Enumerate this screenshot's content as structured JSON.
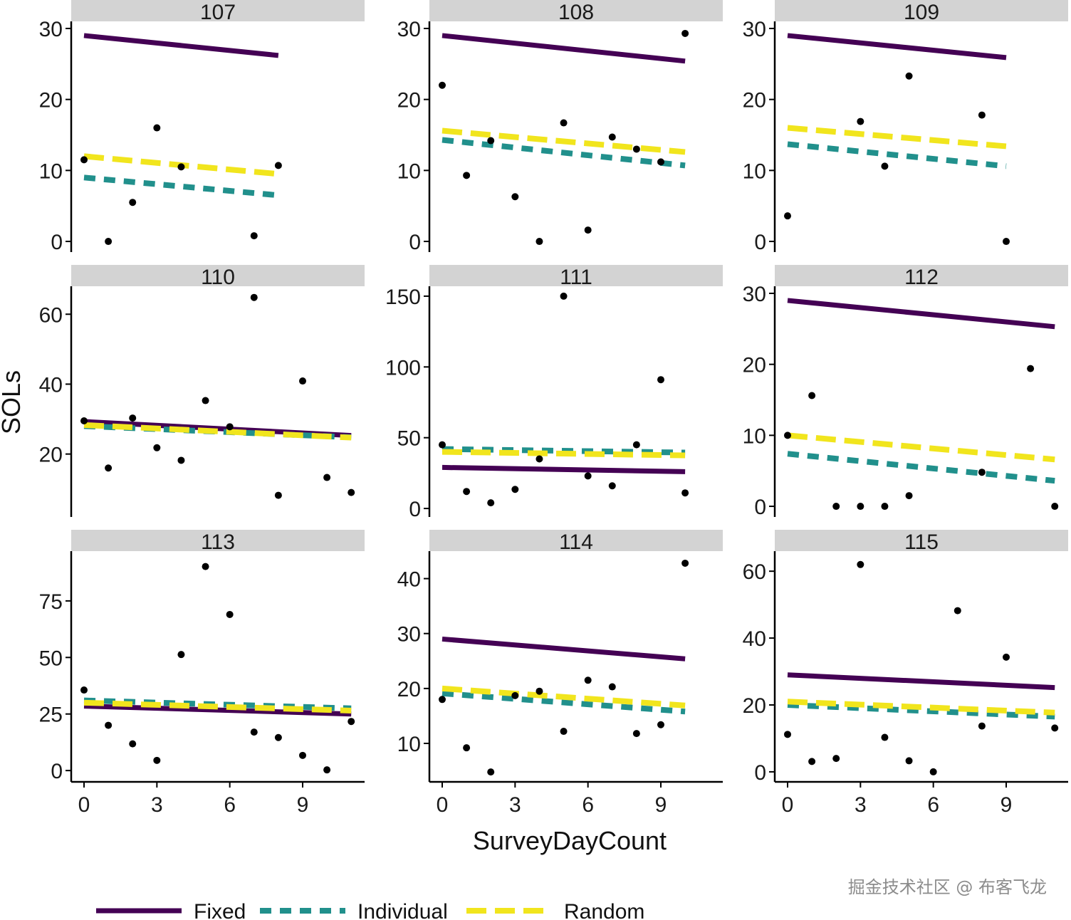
{
  "chart_data": {
    "type": "scatter",
    "xlabel": "SurveyDayCount",
    "ylabel": "SOLs",
    "x_ticks": [
      0,
      3,
      6,
      9
    ],
    "x_range": [
      -0.5,
      11.5
    ],
    "legend": {
      "placement": "bottom-left",
      "items": [
        {
          "key": "fixed",
          "label": "Fixed",
          "color": "#440154",
          "style": "solid"
        },
        {
          "key": "individual",
          "label": "Individual",
          "color": "#21908C",
          "style": "short-dash"
        },
        {
          "key": "random",
          "label": "Random",
          "color": "#F1E51D",
          "style": "long-dash"
        }
      ]
    },
    "panels": [
      {
        "id": "107",
        "ylim": [
          -1.5,
          31
        ],
        "yticks": [
          0,
          10,
          20,
          30
        ],
        "x_end": 8,
        "points": [
          [
            0,
            11.5
          ],
          [
            1,
            0
          ],
          [
            2,
            5.5
          ],
          [
            3,
            16
          ],
          [
            4,
            10.5
          ],
          [
            7,
            0.8
          ],
          [
            8,
            10.7
          ]
        ],
        "lines": {
          "fixed": [
            29,
            26.2
          ],
          "individual": [
            9,
            6.5
          ],
          "random": [
            12,
            9.5
          ]
        }
      },
      {
        "id": "108",
        "ylim": [
          -1.5,
          31
        ],
        "yticks": [
          0,
          10,
          20,
          30
        ],
        "x_end": 10,
        "points": [
          [
            0,
            22
          ],
          [
            1,
            9.3
          ],
          [
            2,
            14.2
          ],
          [
            3,
            6.3
          ],
          [
            4,
            0
          ],
          [
            5,
            16.7
          ],
          [
            6,
            1.6
          ],
          [
            7,
            14.7
          ],
          [
            8,
            13
          ],
          [
            9,
            11.2
          ],
          [
            10,
            29.3
          ]
        ],
        "lines": {
          "fixed": [
            29,
            25.4
          ],
          "individual": [
            14.3,
            10.7
          ],
          "random": [
            15.6,
            12.6
          ]
        }
      },
      {
        "id": "109",
        "ylim": [
          -1.5,
          31
        ],
        "yticks": [
          0,
          10,
          20,
          30
        ],
        "x_end": 9,
        "points": [
          [
            0,
            3.6
          ],
          [
            3,
            16.9
          ],
          [
            4,
            10.6
          ],
          [
            5,
            23.3
          ],
          [
            8,
            17.8
          ],
          [
            9,
            0
          ]
        ],
        "lines": {
          "fixed": [
            29,
            25.9
          ],
          "individual": [
            13.7,
            10.6
          ],
          "random": [
            16,
            13.4
          ]
        }
      },
      {
        "id": "110",
        "ylim": [
          2,
          68
        ],
        "yticks": [
          20,
          40,
          60
        ],
        "x_end": 11,
        "points": [
          [
            0,
            29.5
          ],
          [
            1,
            16
          ],
          [
            2,
            30.3
          ],
          [
            3,
            21.8
          ],
          [
            4,
            18.2
          ],
          [
            5,
            35.3
          ],
          [
            6,
            27.8
          ],
          [
            7,
            64.8
          ],
          [
            8,
            8.2
          ],
          [
            9,
            40.9
          ],
          [
            10,
            13.3
          ],
          [
            11,
            9
          ]
        ],
        "lines": {
          "fixed": [
            29.3,
            25.3
          ],
          "individual": [
            28,
            24.8
          ],
          "random": [
            28.3,
            24.7
          ]
        }
      },
      {
        "id": "111",
        "ylim": [
          -6,
          157
        ],
        "yticks": [
          0,
          50,
          100,
          150
        ],
        "x_end": 10,
        "points": [
          [
            0,
            45
          ],
          [
            1,
            12
          ],
          [
            2,
            4
          ],
          [
            3,
            13.5
          ],
          [
            4,
            35
          ],
          [
            5,
            150
          ],
          [
            6,
            23
          ],
          [
            7,
            16
          ],
          [
            8,
            45
          ],
          [
            9,
            91
          ],
          [
            10,
            11
          ]
        ],
        "lines": {
          "fixed": [
            29,
            26
          ],
          "individual": [
            42,
            39.5
          ],
          "random": [
            40,
            37.5
          ]
        }
      },
      {
        "id": "112",
        "ylim": [
          -1.5,
          31
        ],
        "yticks": [
          0,
          10,
          20,
          30
        ],
        "x_end": 11,
        "points": [
          [
            0,
            10
          ],
          [
            1,
            15.6
          ],
          [
            2,
            0
          ],
          [
            3,
            0
          ],
          [
            4,
            0
          ],
          [
            5,
            1.5
          ],
          [
            8,
            4.8
          ],
          [
            10,
            19.4
          ],
          [
            11,
            0
          ]
        ],
        "lines": {
          "fixed": [
            29,
            25.3
          ],
          "individual": [
            7.4,
            3.6
          ],
          "random": [
            10,
            6.6
          ]
        }
      },
      {
        "id": "113",
        "ylim": [
          -5,
          97
        ],
        "yticks": [
          0,
          25,
          50,
          75
        ],
        "x_end": 11,
        "points": [
          [
            0,
            35.6
          ],
          [
            1,
            20
          ],
          [
            2,
            11.8
          ],
          [
            3,
            4.5
          ],
          [
            4,
            51.3
          ],
          [
            5,
            90.2
          ],
          [
            6,
            69
          ],
          [
            7,
            17
          ],
          [
            8,
            14.6
          ],
          [
            9,
            6.7
          ],
          [
            10,
            0.3
          ],
          [
            11,
            21.7
          ]
        ],
        "lines": {
          "fixed": [
            28.5,
            25
          ],
          "individual": [
            31,
            27.5
          ],
          "random": [
            30,
            26.5
          ]
        }
      },
      {
        "id": "114",
        "ylim": [
          3,
          45
        ],
        "yticks": [
          10,
          20,
          30,
          40
        ],
        "x_end": 10,
        "points": [
          [
            0,
            18
          ],
          [
            1,
            9.2
          ],
          [
            2,
            4.8
          ],
          [
            3,
            18.7
          ],
          [
            4,
            19.5
          ],
          [
            5,
            12.2
          ],
          [
            6,
            21.5
          ],
          [
            7,
            20.3
          ],
          [
            8,
            11.8
          ],
          [
            9,
            13.4
          ],
          [
            10,
            42.8
          ]
        ],
        "lines": {
          "fixed": [
            29,
            25.4
          ],
          "individual": [
            19.1,
            15.8
          ],
          "random": [
            20,
            16.9
          ]
        }
      },
      {
        "id": "115",
        "ylim": [
          -3,
          66
        ],
        "yticks": [
          0,
          20,
          40,
          60
        ],
        "x_end": 11,
        "points": [
          [
            0,
            11.2
          ],
          [
            1,
            3.1
          ],
          [
            2,
            4
          ],
          [
            3,
            62
          ],
          [
            4,
            10.3
          ],
          [
            5,
            3.3
          ],
          [
            6,
            0
          ],
          [
            7,
            48.2
          ],
          [
            8,
            13.7
          ],
          [
            9,
            34.3
          ],
          [
            11,
            13.1
          ]
        ],
        "lines": {
          "fixed": [
            29,
            25.2
          ],
          "individual": [
            20,
            16.5
          ],
          "random": [
            21,
            17.7
          ]
        }
      }
    ]
  },
  "watermark": "掘金技术社区 @ 布客飞龙"
}
